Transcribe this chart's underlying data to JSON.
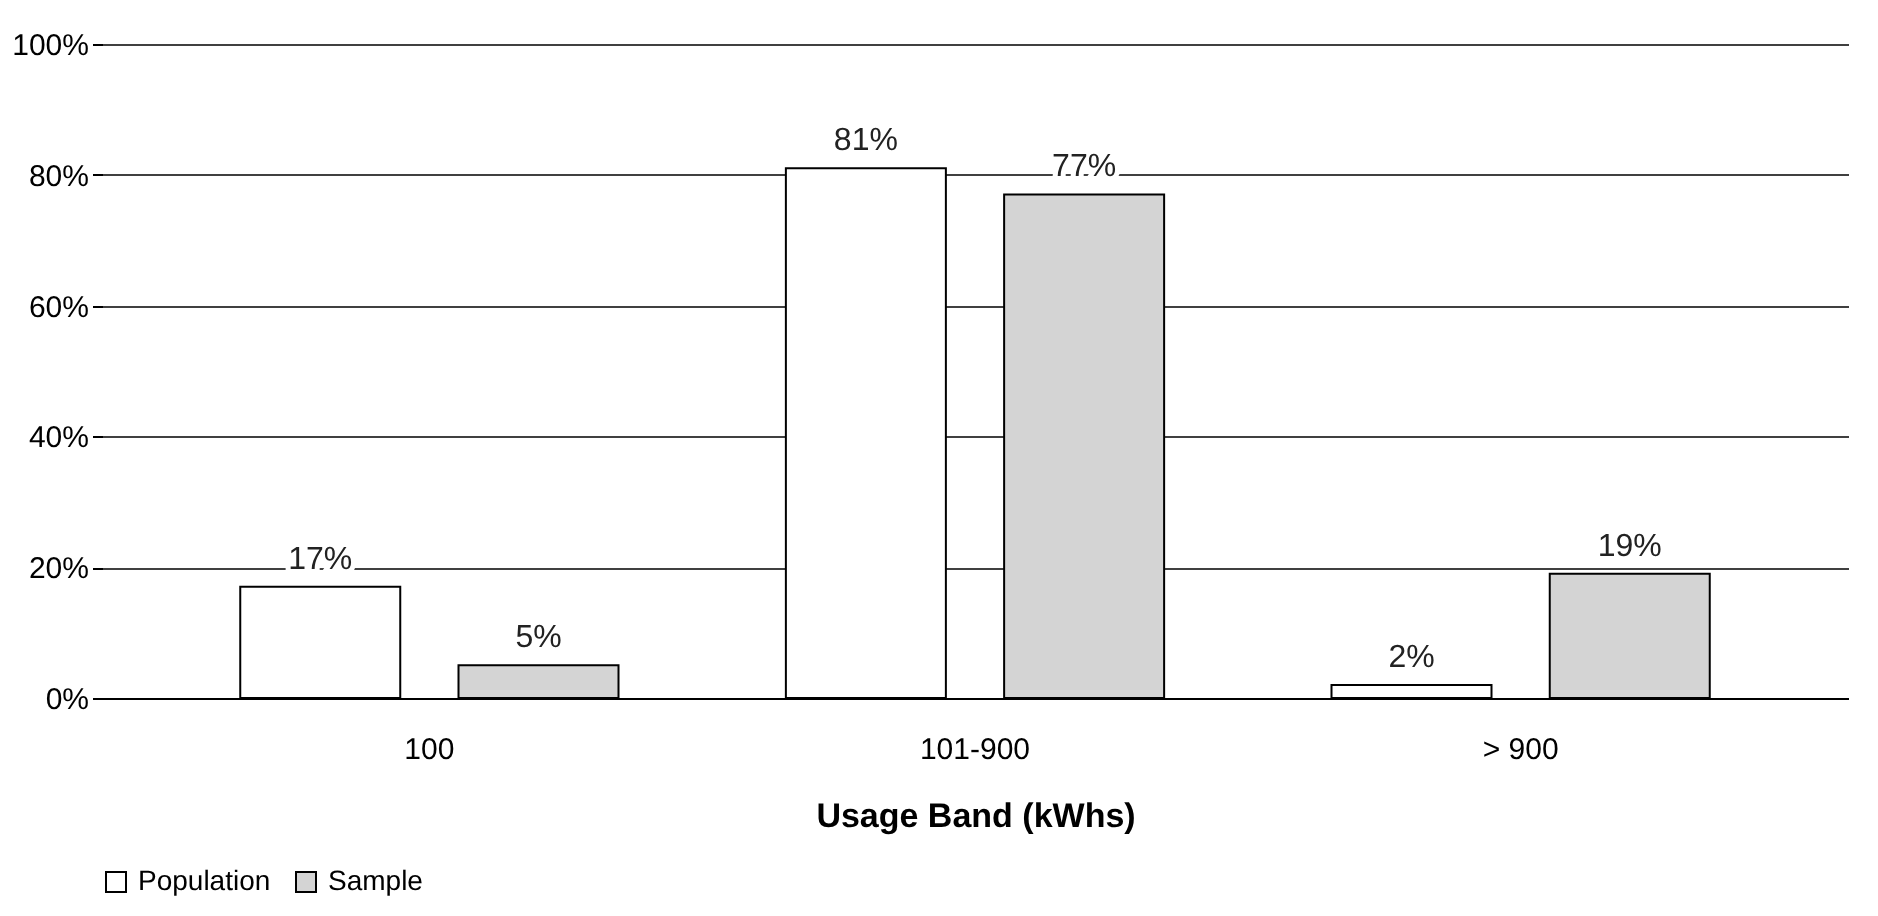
{
  "chart_data": {
    "type": "bar",
    "xlabel": "Usage Band (kWhs)",
    "categories": [
      "100",
      "101-900",
      "> 900"
    ],
    "series": [
      {
        "name": "Population",
        "color": "#ffffff",
        "values": [
          17,
          81,
          2
        ],
        "value_labels": [
          "17%",
          "81%",
          "2%"
        ]
      },
      {
        "name": "Sample",
        "color": "#d4d4d4",
        "values": [
          5,
          77,
          19
        ],
        "value_labels": [
          "5%",
          "77%",
          "19%"
        ]
      }
    ],
    "ylim": [
      0,
      100
    ],
    "yticks": [
      {
        "value": 0,
        "label": "0%"
      },
      {
        "value": 20,
        "label": "20%"
      },
      {
        "value": 40,
        "label": "40%"
      },
      {
        "value": 60,
        "label": "60%"
      },
      {
        "value": 80,
        "label": "80%"
      },
      {
        "value": 100,
        "label": "100%"
      }
    ],
    "grid": "y",
    "legend": "bottom"
  }
}
